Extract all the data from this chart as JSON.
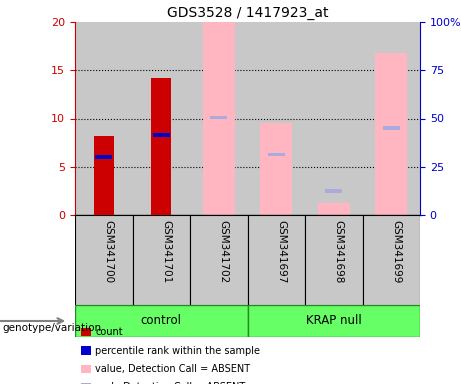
{
  "title": "GDS3528 / 1417923_at",
  "samples": [
    "GSM341700",
    "GSM341701",
    "GSM341702",
    "GSM341697",
    "GSM341698",
    "GSM341699"
  ],
  "ylim_left": [
    0,
    20
  ],
  "ylim_right": [
    0,
    100
  ],
  "yticks_left": [
    0,
    5,
    10,
    15,
    20
  ],
  "yticks_right": [
    0,
    25,
    50,
    75,
    100
  ],
  "ytick_labels_right": [
    "0",
    "25",
    "50",
    "75",
    "100%"
  ],
  "count_values": [
    8.2,
    14.2,
    null,
    null,
    null,
    null
  ],
  "rank_values": [
    6.0,
    8.3,
    null,
    null,
    null,
    null
  ],
  "absent_value_values": [
    null,
    null,
    20.0,
    9.5,
    1.2,
    16.8
  ],
  "absent_rank_values": [
    null,
    null,
    10.1,
    6.3,
    2.5,
    9.0
  ],
  "count_color": "#CC0000",
  "rank_color": "#0000CC",
  "absent_value_color": "#FFB6C1",
  "absent_rank_color": "#AAAADD",
  "bar_width": 0.35,
  "absent_bar_width": 0.55,
  "left_axis_color": "#CC0000",
  "right_axis_color": "#0000CC",
  "sample_bg_color": "#C8C8C8",
  "group_fill_color": "#66FF66",
  "group_edge_color": "#228B22",
  "group_spans": [
    [
      0,
      2,
      "control"
    ],
    [
      3,
      5,
      "KRAP null"
    ]
  ],
  "legend_items": [
    {
      "label": "count",
      "color": "#CC0000"
    },
    {
      "label": "percentile rank within the sample",
      "color": "#0000CC"
    },
    {
      "label": "value, Detection Call = ABSENT",
      "color": "#FFB6C1"
    },
    {
      "label": "rank, Detection Call = ABSENT",
      "color": "#AAAADD"
    }
  ],
  "genotype_label": "genotype/variation"
}
